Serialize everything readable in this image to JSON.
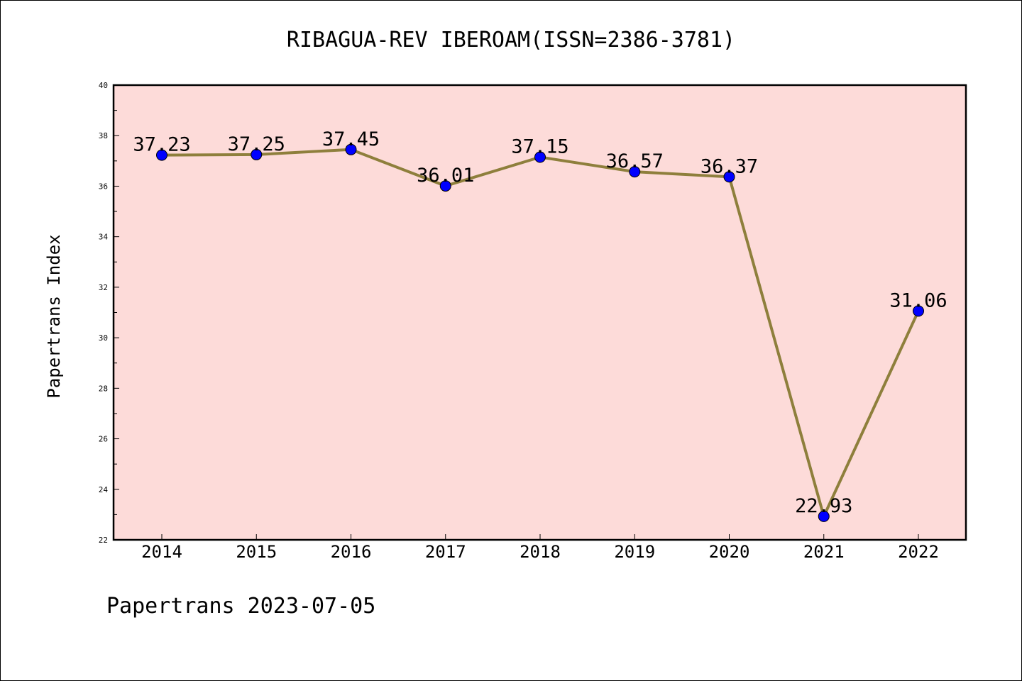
{
  "chart_data": {
    "type": "line",
    "title": "RIBAGUA-REV IBEROAM(ISSN=2386-3781)",
    "xlabel": "",
    "ylabel": "Papertrans Index",
    "categories": [
      "2014",
      "2015",
      "2016",
      "2017",
      "2018",
      "2019",
      "2020",
      "2021",
      "2022"
    ],
    "values": [
      37.23,
      37.25,
      37.45,
      36.01,
      37.15,
      36.57,
      36.37,
      22.93,
      31.06
    ],
    "data_labels": [
      "37.23",
      "37.25",
      "37.45",
      "36.01",
      "37.15",
      "36.57",
      "36.37",
      "22.93",
      "31.06"
    ],
    "ylim": [
      22,
      40
    ],
    "yticks": [
      "22",
      "24",
      "26",
      "28",
      "30",
      "32",
      "34",
      "36",
      "38",
      "40"
    ],
    "grid": false,
    "legend": "none",
    "colors": {
      "plot_background": "#FDDBD9",
      "line": "#8E7F3C",
      "marker": "#0000FF"
    }
  },
  "footer": "Papertrans 2023-07-05"
}
